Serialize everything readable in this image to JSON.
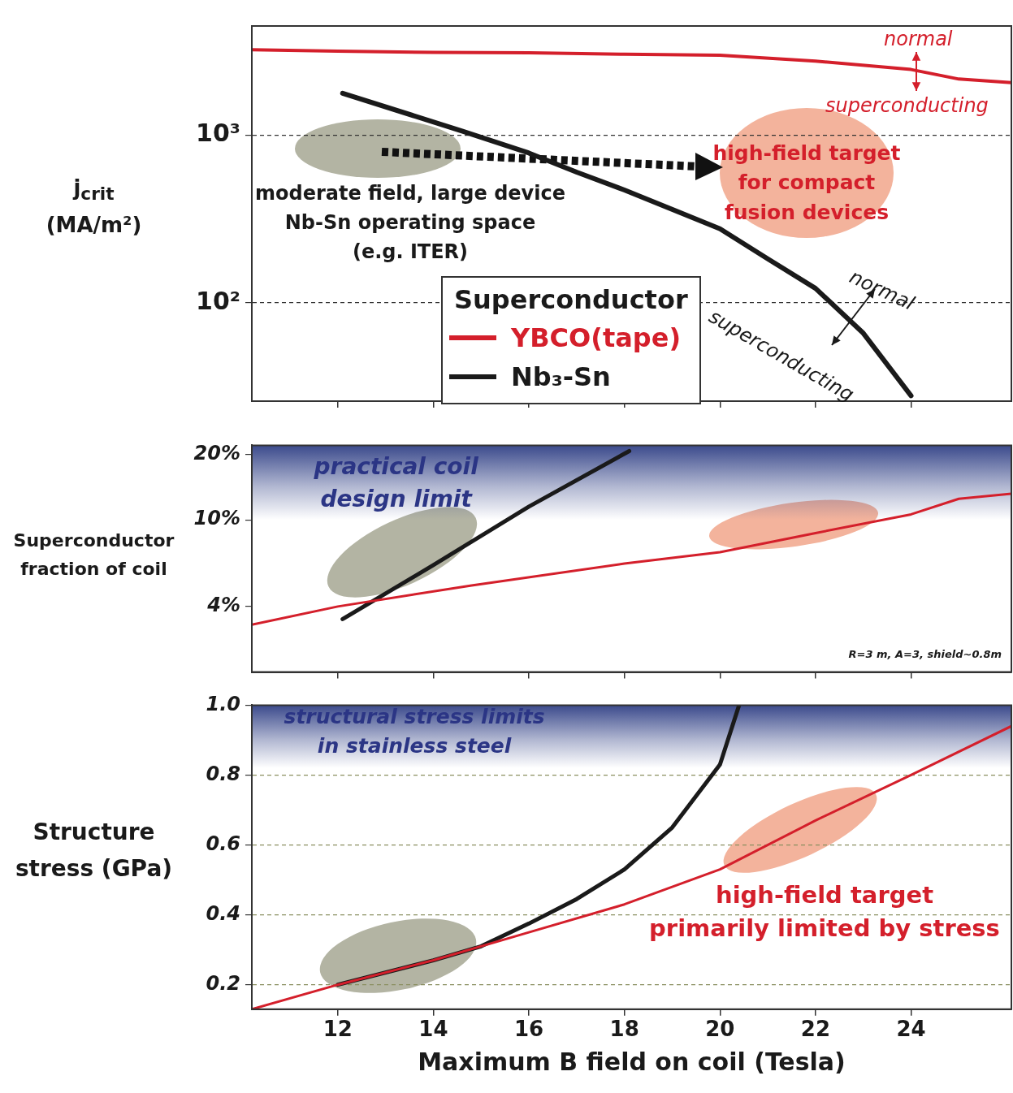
{
  "chart_data": [
    {
      "type": "line",
      "ylabel": "j$_{crit}$\n(MA/m²)",
      "legend_title": "Superconductor",
      "legend": "bottom",
      "log": "y",
      "grid": "y",
      "tick_labels": "y",
      "xlim": [
        10.2,
        26.1
      ],
      "xticks": [
        12,
        14,
        16,
        18,
        20,
        22,
        24
      ],
      "ylim": [
        26,
        4450
      ],
      "yticks": [
        {
          "value": 100,
          "label": "10²"
        },
        {
          "value": 1000,
          "label": "10³"
        }
      ],
      "series": [
        {
          "name": "YBCO(tape)",
          "color": "#d41f2b",
          "x": [
            10.2,
            12,
            14,
            16,
            18,
            20,
            22,
            24,
            25,
            26.1
          ],
          "values": [
            3210,
            3150,
            3100,
            3080,
            3020,
            2980,
            2750,
            2450,
            2150,
            2050
          ]
        },
        {
          "name": "Nb₃-Sn",
          "color": "#1a1a1a",
          "x": [
            12.1,
            14.6,
            16,
            17,
            18,
            20,
            21,
            22,
            23,
            24
          ],
          "values": [
            1770,
            1055,
            780,
            600,
            470,
            276,
            183,
            122,
            66,
            28
          ]
        }
      ],
      "annotations": [
        "normal",
        "superconducting",
        "moderate field, large device\nNb-Sn operating space\n(e.g. ITER)",
        "high-field target\nfor compact\nfusion devices",
        "normal",
        "superconducting"
      ]
    },
    {
      "type": "line",
      "ylabel": "Superconductor\nfraction of coil",
      "log": "y",
      "tick_labels": "y",
      "xlim": [
        10.2,
        26.1
      ],
      "xticks": [
        12,
        14,
        16,
        18,
        20,
        22,
        24
      ],
      "ylim": [
        2,
        22
      ],
      "yticks": [
        {
          "value": 4,
          "label": "4%"
        },
        {
          "value": 10,
          "label": "10%"
        },
        {
          "value": 20,
          "label": "20%"
        }
      ],
      "bands": [
        {
          "axis": "y",
          "from": 10,
          "to": 22,
          "label": "practical coil\ndesign limit",
          "color": "#3b4a8c"
        }
      ],
      "series": [
        {
          "color": "#d41f2b",
          "x": [
            10.2,
            12,
            14.8,
            18,
            20,
            22,
            24,
            25,
            26.1
          ],
          "values": [
            3.3,
            4,
            5,
            6.3,
            7.1,
            8.7,
            10.6,
            12.5,
            13.2
          ]
        },
        {
          "color": "#1a1a1a",
          "x": [
            12.1,
            14,
            16,
            18.1
          ],
          "values": [
            3.5,
            6.2,
            11.5,
            20.7
          ]
        }
      ],
      "annotations": [
        "R=3 m, A=3, shield~0.8m"
      ]
    },
    {
      "type": "line",
      "ylabel": "Structure\nstress (GPa)",
      "xlabel": "Maximum B field on coil (Tesla)",
      "grid": "y",
      "xlim": [
        10.2,
        26.1
      ],
      "xticks": [
        12,
        14,
        16,
        18,
        20,
        22,
        24
      ],
      "ylim": [
        0.13,
        1.0
      ],
      "yticks": [
        0.2,
        0.4,
        0.6,
        0.8,
        {
          "value": 1,
          "label": "1.0"
        }
      ],
      "bands": [
        {
          "axis": "y",
          "from": 0.82,
          "to": 1.0,
          "label": "structural stress limits\nin stainless steel",
          "color": "#3b4a8c"
        }
      ],
      "series": [
        {
          "color": "#d41f2b",
          "x": [
            10.2,
            12,
            14,
            16,
            18,
            20,
            22,
            24,
            26.1
          ],
          "values": [
            0.13,
            0.2,
            0.27,
            0.35,
            0.43,
            0.53,
            0.67,
            0.8,
            0.94
          ]
        },
        {
          "color": "#1a1a1a",
          "x": [
            12,
            14,
            15,
            16,
            17,
            18,
            19,
            20,
            20.4
          ],
          "values": [
            0.2,
            0.27,
            0.31,
            0.375,
            0.445,
            0.53,
            0.65,
            0.83,
            1.0
          ]
        }
      ],
      "annotations": [
        "high-field target\nprimarily limited by stress"
      ]
    }
  ]
}
